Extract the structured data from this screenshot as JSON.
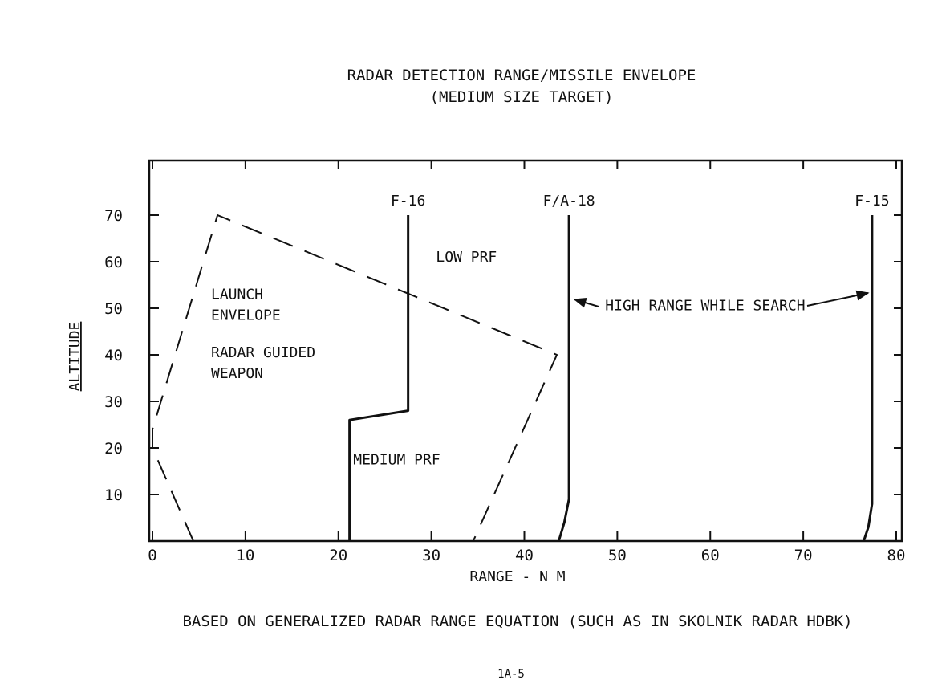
{
  "page": {
    "title_line1": "RADAR DETECTION RANGE/MISSILE ENVELOPE",
    "title_line2": "(MEDIUM SIZE TARGET)",
    "footnote": "BASED ON GENERALIZED RADAR RANGE EQUATION (SUCH AS IN SKOLNIK RADAR HDBK)",
    "page_number": "1A-5"
  },
  "chart_data": {
    "type": "line",
    "title": "RADAR DETECTION RANGE/MISSILE ENVELOPE",
    "subtitle": "(MEDIUM SIZE TARGET)",
    "xlabel": "RANGE - N M",
    "ylabel": "ALTITUDE",
    "xlim": [
      0,
      80
    ],
    "ylim": [
      0,
      80
    ],
    "xticks": [
      0,
      10,
      20,
      30,
      40,
      50,
      60,
      70,
      80
    ],
    "yticks": [
      10,
      20,
      30,
      40,
      50,
      60,
      70
    ],
    "grid": false,
    "series": [
      {
        "name": "F-16",
        "style": "solid",
        "x": [
          21.2,
          21.2,
          27.5,
          27.5
        ],
        "y": [
          0,
          26,
          28,
          70
        ]
      },
      {
        "name": "F/A-18",
        "style": "solid",
        "x": [
          43.7,
          44.3,
          44.8,
          44.8
        ],
        "y": [
          0,
          4,
          9,
          70
        ]
      },
      {
        "name": "F-15",
        "style": "solid",
        "x": [
          76.5,
          77.0,
          77.4,
          77.4
        ],
        "y": [
          0,
          3,
          8,
          70
        ]
      },
      {
        "name": "",
        "style": "dashed",
        "x": [
          4.4,
          0,
          0,
          7,
          43.5,
          34.5
        ],
        "y": [
          0,
          20,
          24,
          70,
          40,
          0
        ]
      }
    ],
    "annotations": [
      {
        "text": "LOW PRF",
        "x": 30.5,
        "y": 60
      },
      {
        "text": "LAUNCH",
        "x": 6.3,
        "y": 52
      },
      {
        "text": "ENVELOPE",
        "x": 6.3,
        "y": 47.5
      },
      {
        "text": "RADAR GUIDED",
        "x": 6.3,
        "y": 39.5
      },
      {
        "text": "WEAPON",
        "x": 6.3,
        "y": 35
      },
      {
        "text": "MEDIUM PRF",
        "x": 21.6,
        "y": 16.5
      },
      {
        "text": "HIGH RANGE WHILE SEARCH",
        "x": 48.7,
        "y": 49.6
      }
    ]
  }
}
